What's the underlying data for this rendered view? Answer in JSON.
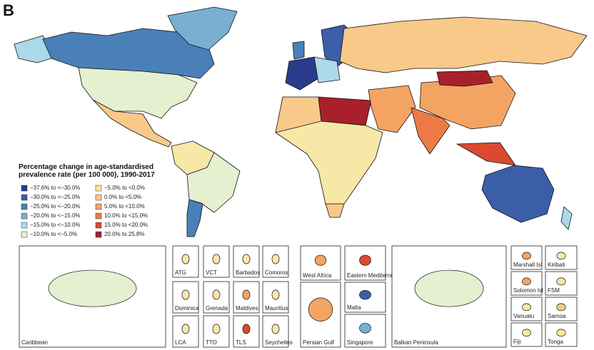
{
  "panel": "B",
  "legend": {
    "title": "Percentage change in age-standardised prevalence rate (per 100 000), 1990-2017",
    "items": [
      {
        "label": "−37.6% to <−30.0%",
        "color": "#2b3c8f"
      },
      {
        "label": "−30.0% to <−25.0%",
        "color": "#3b5ea8"
      },
      {
        "label": "−25.0% to <−20.0%",
        "color": "#4a80b8"
      },
      {
        "label": "−20.0% to <−15.0%",
        "color": "#78afd3"
      },
      {
        "label": "−15.0% to <−10.0%",
        "color": "#acd9e9"
      },
      {
        "label": "−10.0% to <−5.0%",
        "color": "#e4f0d0"
      },
      {
        "label": "−5.0% to <0.0%",
        "color": "#f7e8a8"
      },
      {
        "label": "0.0% to <5.0%",
        "color": "#f9c98a"
      },
      {
        "label": "5.0% to <10.0%",
        "color": "#f4a462"
      },
      {
        "label": "10.0% to <15.0%",
        "color": "#ec7a45"
      },
      {
        "label": "15.0% to <20.0%",
        "color": "#d94a30"
      },
      {
        "label": "20.0% to 25.8%",
        "color": "#a8202a"
      }
    ]
  },
  "insets": [
    "Caribbean",
    "ATG",
    "VCT",
    "Barbados",
    "Comoros",
    "Dominica",
    "Grenada",
    "Maldives",
    "Mauritius",
    "LCA",
    "TTO",
    "TLS",
    "Seychelles",
    "West Africa",
    "Eastern Mediterranean",
    "Malta",
    "Persian Gulf",
    "Singapore",
    "Balkan Peninsula",
    "Marshall Isl",
    "Kiribati",
    "Solomon Isl",
    "FSM",
    "Vanuatu",
    "Samoa",
    "Fiji",
    "Tonga"
  ]
}
